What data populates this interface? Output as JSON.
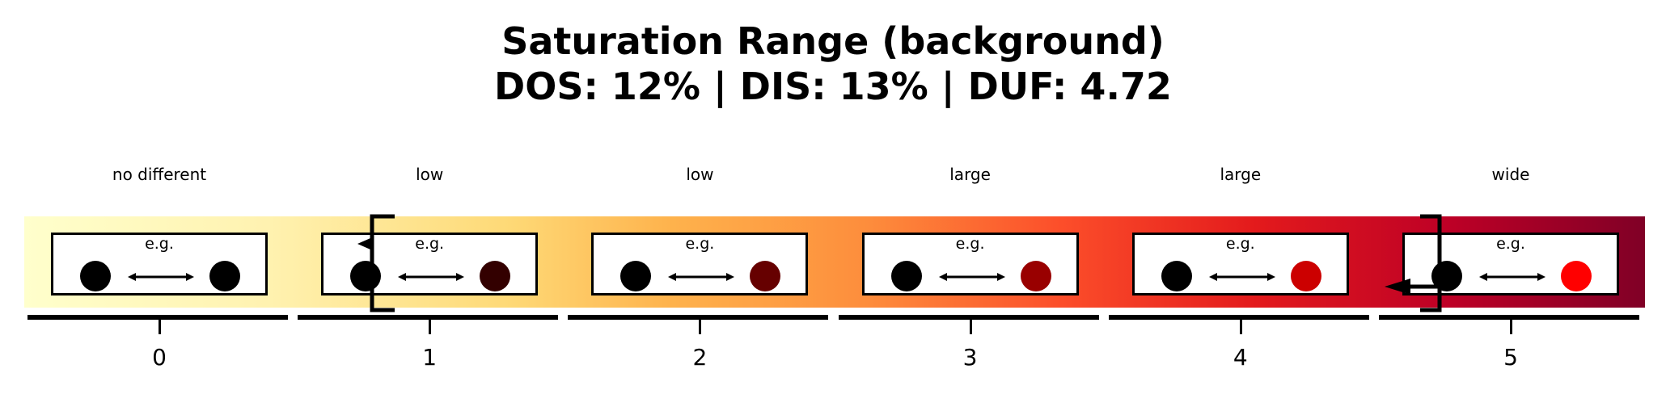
{
  "title": {
    "line1": "Saturation Range (background)",
    "line2": "DOS: 12% | DIS: 13% | DUF: 4.72"
  },
  "categories": [
    {
      "label": "no different",
      "tick": "0",
      "example": "e.g.",
      "left_color": "#000000",
      "right_color": "#000000"
    },
    {
      "label": "low",
      "tick": "1",
      "example": "e.g.",
      "left_color": "#000000",
      "right_color": "#330000"
    },
    {
      "label": "low",
      "tick": "2",
      "example": "e.g.",
      "left_color": "#000000",
      "right_color": "#660000"
    },
    {
      "label": "large",
      "tick": "3",
      "example": "e.g.",
      "left_color": "#000000",
      "right_color": "#990000"
    },
    {
      "label": "large",
      "tick": "4",
      "example": "e.g.",
      "left_color": "#000000",
      "right_color": "#cc0000"
    },
    {
      "label": "wide",
      "tick": "5",
      "example": "e.g.",
      "left_color": "#000000",
      "right_color": "#ff0000"
    }
  ],
  "colors": {
    "gradient_start": "#ffffcc",
    "gradient_end": "#800026",
    "marker": "#000000"
  }
}
